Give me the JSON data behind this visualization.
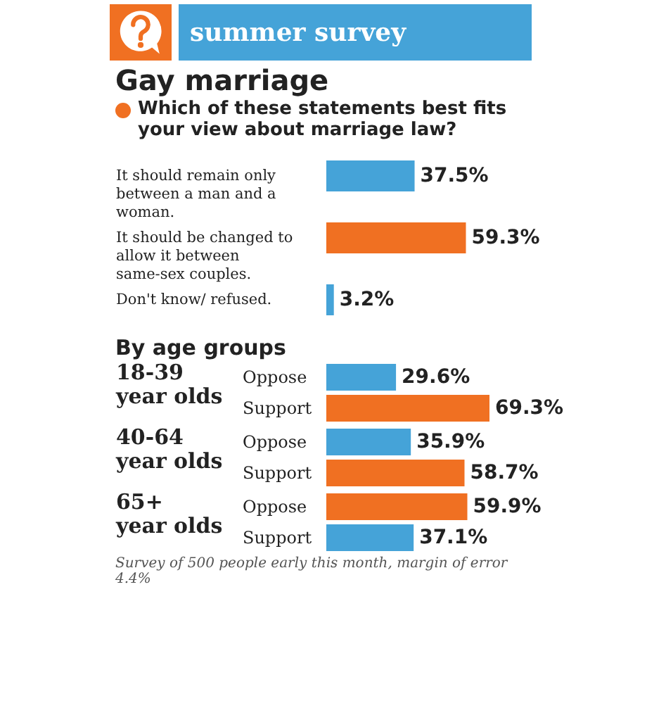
{
  "chart_data": [
    {
      "type": "bar",
      "orientation": "horizontal",
      "title": "Gay marriage",
      "subtitle": "Which of these statements best fits your view about marriage law?",
      "annotations": [
        "summer survey"
      ],
      "categories": [
        "It should remain only between a man and a woman.",
        "It should be changed to allow it between same-sex couples.",
        "Don't know/ refused."
      ],
      "values": [
        37.5,
        59.3,
        3.2
      ],
      "colors": [
        "#45a3d8",
        "#f07022",
        "#45a3d8"
      ],
      "value_labels": [
        "37.5%",
        "59.3%",
        "3.2%"
      ],
      "tick_labels": "y"
    },
    {
      "type": "bar",
      "orientation": "horizontal",
      "title": "By age groups",
      "ylabel": "18-39 year olds",
      "categories": [
        "Oppose",
        "Support"
      ],
      "values": [
        29.6,
        69.3
      ],
      "colors": [
        "#45a3d8",
        "#f07022"
      ],
      "value_labels": [
        "29.6%",
        "69.3%"
      ],
      "tick_labels": "y"
    },
    {
      "type": "bar",
      "orientation": "horizontal",
      "ylabel": "40-64 year olds",
      "categories": [
        "Oppose",
        "Support"
      ],
      "values": [
        35.9,
        58.7
      ],
      "colors": [
        "#45a3d8",
        "#f07022"
      ],
      "value_labels": [
        "35.9%",
        "58.7%"
      ],
      "tick_labels": "y"
    },
    {
      "type": "bar",
      "orientation": "horizontal",
      "ylabel": "65+ year olds",
      "annotations": [
        "Survey of 500 people early this month, margin of error 4.4%"
      ],
      "categories": [
        "Oppose",
        "Support"
      ],
      "values": [
        59.9,
        37.1
      ],
      "colors": [
        "#f07022",
        "#45a3d8"
      ],
      "value_labels": [
        "59.9%",
        "37.1%"
      ],
      "tick_labels": "y"
    }
  ]
}
